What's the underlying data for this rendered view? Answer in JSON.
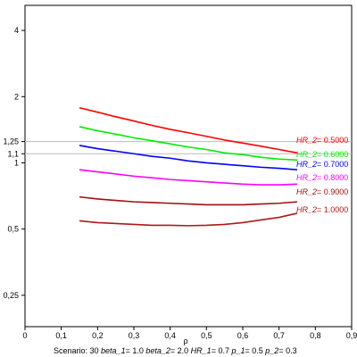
{
  "chart_data": {
    "type": "line",
    "x_label": "ρ",
    "x_range": [
      0,
      0.9
    ],
    "x_ticks": [
      "0",
      "0,1",
      "0,2",
      "0,3",
      "0,4",
      "0,5",
      "0,6",
      "0,7",
      "0,8",
      "0,9"
    ],
    "y_scale": "log",
    "y_range": [
      0.18,
      5.2
    ],
    "y_ticks": [
      {
        "value": 0.25,
        "label": "0,25"
      },
      {
        "value": 0.5,
        "label": "0,5"
      },
      {
        "value": 1,
        "label": "1"
      },
      {
        "value": 1.1,
        "label": "1,1"
      },
      {
        "value": 1.25,
        "label": "1,25"
      },
      {
        "value": 2,
        "label": "2"
      },
      {
        "value": 4,
        "label": "4"
      }
    ],
    "reference_lines": [
      1.1,
      1.25
    ],
    "x": [
      0.15,
      0.2,
      0.25,
      0.3,
      0.35,
      0.4,
      0.45,
      0.5,
      0.55,
      0.6,
      0.65,
      0.7,
      0.75
    ],
    "series": [
      {
        "label_name": "HR_2",
        "label_value": "= 0.5000",
        "color": "#ff0000",
        "values": [
          1.78,
          1.7,
          1.62,
          1.55,
          1.48,
          1.42,
          1.37,
          1.32,
          1.27,
          1.23,
          1.19,
          1.15,
          1.11
        ]
      },
      {
        "label_name": "HR_2",
        "label_value": "= 0.6000",
        "color": "#00ee00",
        "values": [
          1.46,
          1.4,
          1.35,
          1.3,
          1.26,
          1.22,
          1.18,
          1.15,
          1.11,
          1.09,
          1.06,
          1.04,
          1.03
        ]
      },
      {
        "label_name": "HR_2",
        "label_value": "= 0.7000",
        "color": "#0000ff",
        "values": [
          1.2,
          1.16,
          1.13,
          1.1,
          1.07,
          1.05,
          1.02,
          1.0,
          0.985,
          0.97,
          0.955,
          0.945,
          0.93
        ]
      },
      {
        "label_name": "HR_2",
        "label_value": "= 0.8000",
        "color": "#ff00ff",
        "values": [
          0.93,
          0.91,
          0.89,
          0.87,
          0.855,
          0.84,
          0.83,
          0.82,
          0.81,
          0.8,
          0.795,
          0.795,
          0.8
        ]
      },
      {
        "label_name": "HR_2",
        "label_value": "= 0.9000",
        "color": "#a01010",
        "values": [
          0.7,
          0.685,
          0.675,
          0.665,
          0.66,
          0.655,
          0.65,
          0.645,
          0.645,
          0.645,
          0.65,
          0.655,
          0.665
        ]
      },
      {
        "label_name": "HR_2",
        "label_value": "= 1.0000",
        "color": "#b01818",
        "values": [
          0.545,
          0.535,
          0.53,
          0.525,
          0.52,
          0.52,
          0.518,
          0.52,
          0.525,
          0.535,
          0.55,
          0.565,
          0.59
        ]
      }
    ]
  },
  "caption": {
    "scenario": "Scenario: 30",
    "params": [
      {
        "name": "beta_1",
        "value": "= 1.0"
      },
      {
        "name": "beta_2",
        "value": "= 2.0"
      },
      {
        "name": "HR_1",
        "value": "= 0.7"
      },
      {
        "name": "p_1",
        "value": "= 0.5"
      },
      {
        "name": "p_2",
        "value": "= 0.3"
      }
    ]
  }
}
